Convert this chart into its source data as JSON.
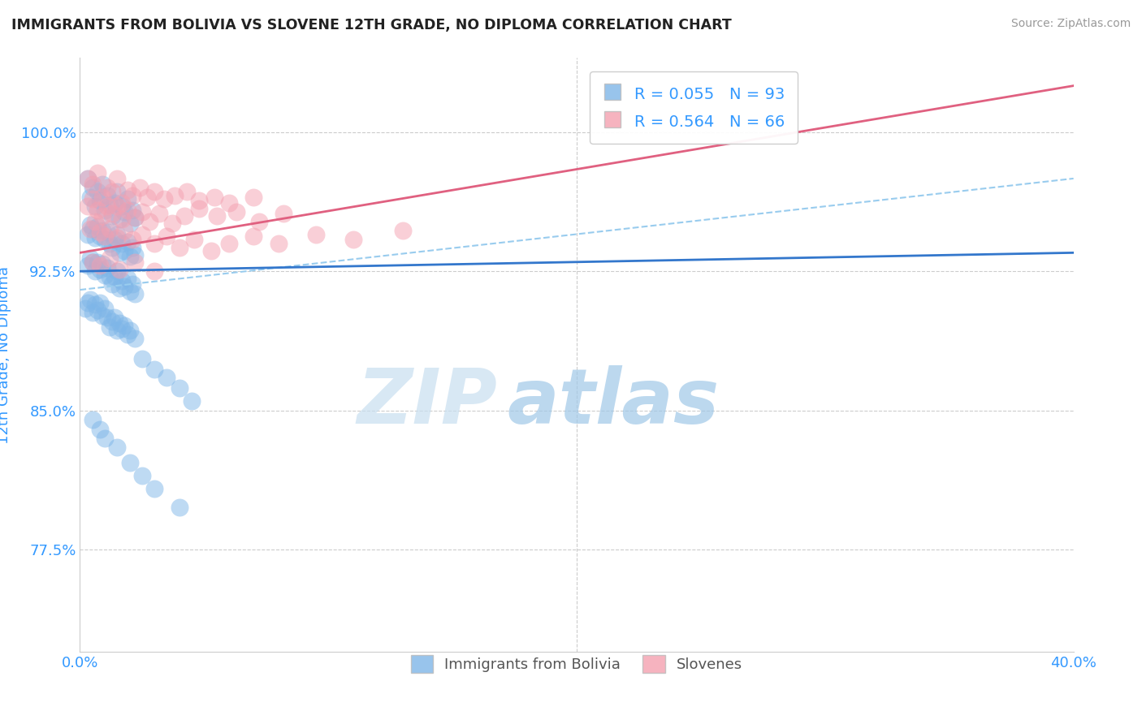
{
  "title": "IMMIGRANTS FROM BOLIVIA VS SLOVENE 12TH GRADE, NO DIPLOMA CORRELATION CHART",
  "source": "Source: ZipAtlas.com",
  "ylabel": "12th Grade, No Diploma",
  "legend_label1": "Immigrants from Bolivia",
  "legend_label2": "Slovenes",
  "R1": 0.055,
  "N1": 93,
  "R2": 0.564,
  "N2": 66,
  "xlim": [
    0.0,
    0.4
  ],
  "ylim": [
    0.72,
    1.04
  ],
  "yticks": [
    0.775,
    0.85,
    0.925,
    1.0
  ],
  "ytick_labels": [
    "77.5%",
    "85.0%",
    "92.5%",
    "100.0%"
  ],
  "xtick_labels": [
    "0.0%",
    "40.0%"
  ],
  "xticks": [
    0.0,
    0.4
  ],
  "color_blue": "#7EB6E8",
  "color_pink": "#F4A0B0",
  "color_axis_label": "#3399FF",
  "watermark_zip": "ZIP",
  "watermark_atlas": "atlas",
  "blue_trend": [
    0.0,
    0.925,
    0.4,
    0.935
  ],
  "pink_trend": [
    0.0,
    0.935,
    0.4,
    1.025
  ],
  "dashed_trend": [
    0.0,
    0.915,
    0.4,
    0.975
  ],
  "bolivia_scatter_x": [
    0.003,
    0.004,
    0.005,
    0.006,
    0.007,
    0.008,
    0.009,
    0.01,
    0.011,
    0.012,
    0.013,
    0.014,
    0.015,
    0.016,
    0.017,
    0.018,
    0.019,
    0.02,
    0.021,
    0.022,
    0.003,
    0.004,
    0.005,
    0.006,
    0.007,
    0.008,
    0.009,
    0.01,
    0.011,
    0.012,
    0.013,
    0.014,
    0.015,
    0.016,
    0.017,
    0.018,
    0.019,
    0.02,
    0.021,
    0.022,
    0.003,
    0.004,
    0.005,
    0.006,
    0.007,
    0.008,
    0.009,
    0.01,
    0.011,
    0.012,
    0.013,
    0.014,
    0.015,
    0.016,
    0.017,
    0.018,
    0.019,
    0.02,
    0.021,
    0.022,
    0.002,
    0.003,
    0.004,
    0.005,
    0.006,
    0.007,
    0.008,
    0.009,
    0.01,
    0.011,
    0.012,
    0.013,
    0.014,
    0.015,
    0.016,
    0.017,
    0.018,
    0.019,
    0.02,
    0.022,
    0.025,
    0.03,
    0.035,
    0.04,
    0.045,
    0.005,
    0.008,
    0.01,
    0.015,
    0.02,
    0.025,
    0.03,
    0.04
  ],
  "bolivia_scatter_y": [
    0.975,
    0.965,
    0.97,
    0.96,
    0.968,
    0.963,
    0.972,
    0.958,
    0.966,
    0.961,
    0.955,
    0.962,
    0.968,
    0.953,
    0.96,
    0.957,
    0.964,
    0.951,
    0.958,
    0.954,
    0.945,
    0.95,
    0.948,
    0.943,
    0.949,
    0.944,
    0.947,
    0.942,
    0.946,
    0.94,
    0.938,
    0.942,
    0.945,
    0.935,
    0.94,
    0.936,
    0.941,
    0.933,
    0.938,
    0.934,
    0.928,
    0.932,
    0.93,
    0.925,
    0.93,
    0.926,
    0.929,
    0.923,
    0.927,
    0.922,
    0.918,
    0.922,
    0.925,
    0.916,
    0.92,
    0.917,
    0.921,
    0.914,
    0.918,
    0.913,
    0.905,
    0.908,
    0.91,
    0.903,
    0.907,
    0.904,
    0.908,
    0.901,
    0.905,
    0.9,
    0.895,
    0.898,
    0.9,
    0.893,
    0.897,
    0.894,
    0.896,
    0.891,
    0.893,
    0.889,
    0.878,
    0.872,
    0.868,
    0.862,
    0.855,
    0.845,
    0.84,
    0.835,
    0.83,
    0.822,
    0.815,
    0.808,
    0.798
  ],
  "slovene_scatter_x": [
    0.003,
    0.005,
    0.007,
    0.009,
    0.011,
    0.013,
    0.015,
    0.017,
    0.019,
    0.021,
    0.024,
    0.027,
    0.03,
    0.034,
    0.038,
    0.043,
    0.048,
    0.054,
    0.06,
    0.07,
    0.003,
    0.005,
    0.007,
    0.009,
    0.011,
    0.013,
    0.015,
    0.017,
    0.019,
    0.022,
    0.025,
    0.028,
    0.032,
    0.037,
    0.042,
    0.048,
    0.055,
    0.063,
    0.072,
    0.082,
    0.004,
    0.006,
    0.008,
    0.01,
    0.012,
    0.015,
    0.018,
    0.021,
    0.025,
    0.03,
    0.035,
    0.04,
    0.046,
    0.053,
    0.06,
    0.07,
    0.08,
    0.095,
    0.11,
    0.13,
    0.005,
    0.008,
    0.012,
    0.016,
    0.022,
    0.03
  ],
  "slovene_scatter_y": [
    0.975,
    0.972,
    0.978,
    0.965,
    0.97,
    0.968,
    0.975,
    0.962,
    0.969,
    0.966,
    0.97,
    0.965,
    0.968,
    0.964,
    0.966,
    0.968,
    0.963,
    0.965,
    0.962,
    0.965,
    0.96,
    0.964,
    0.958,
    0.955,
    0.96,
    0.956,
    0.96,
    0.953,
    0.958,
    0.954,
    0.957,
    0.952,
    0.956,
    0.951,
    0.955,
    0.959,
    0.955,
    0.957,
    0.952,
    0.956,
    0.948,
    0.952,
    0.946,
    0.944,
    0.948,
    0.943,
    0.947,
    0.942,
    0.945,
    0.94,
    0.944,
    0.938,
    0.942,
    0.936,
    0.94,
    0.944,
    0.94,
    0.945,
    0.942,
    0.947,
    0.93,
    0.928,
    0.932,
    0.926,
    0.93,
    0.925
  ]
}
